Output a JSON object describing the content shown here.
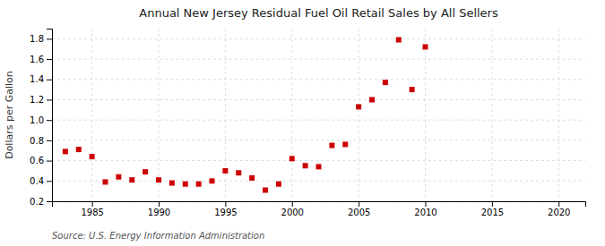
{
  "chart_data": {
    "type": "scatter",
    "title": "Annual New Jersey Residual Fuel Oil Retail Sales by All Sellers",
    "y_label": "Dollars per Gallon",
    "annotations": [
      "Source: U.S. Energy Information Administration"
    ],
    "x": [
      1983,
      1984,
      1985,
      1986,
      1987,
      1988,
      1989,
      1990,
      1991,
      1992,
      1993,
      1994,
      1995,
      1996,
      1997,
      1998,
      1999,
      2000,
      2001,
      2002,
      2003,
      2004,
      2005,
      2006,
      2007,
      2008,
      2009,
      2010
    ],
    "values": [
      0.69,
      0.71,
      0.64,
      0.39,
      0.44,
      0.41,
      0.49,
      0.41,
      0.38,
      0.37,
      0.37,
      0.4,
      0.5,
      0.48,
      0.43,
      0.31,
      0.37,
      0.62,
      0.55,
      0.54,
      0.75,
      0.76,
      1.13,
      1.2,
      1.37,
      1.79,
      1.3,
      1.72
    ],
    "color": "#cc0000",
    "marker": "square",
    "xlim": [
      1982,
      2022
    ],
    "ylim": [
      0.2,
      1.9
    ],
    "xticks": [
      1985,
      1990,
      1995,
      2000,
      2005,
      2010,
      2015,
      2020
    ],
    "yticks": [
      0.2,
      0.4,
      0.6,
      0.8,
      {
        "value": 1.0,
        "label": "1.0"
      },
      1.2,
      1.4,
      1.6,
      1.8
    ],
    "grid": true
  }
}
